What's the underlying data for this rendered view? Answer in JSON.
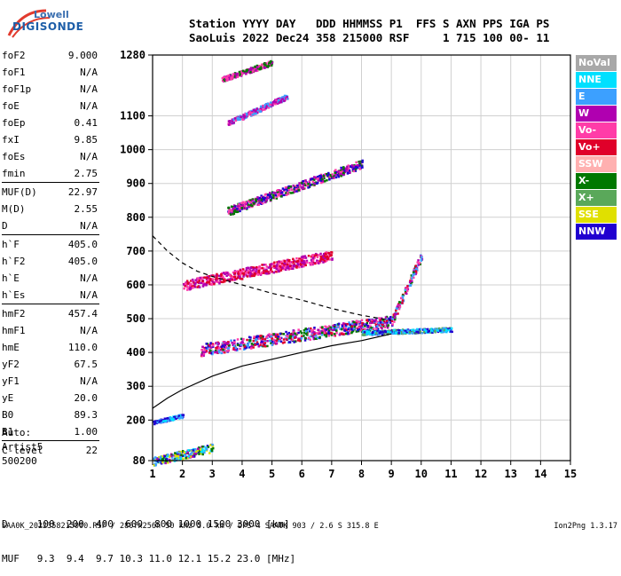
{
  "logo": {
    "line1": "Lowell",
    "line2": "DIGISONDE"
  },
  "header": {
    "line1": "Station YYYY DAY   DDD HHMMSS P1  FFS S AXN PPS IGA PS",
    "line2": "SaoLuis 2022 Dec24 358 215000 RSF     1 715 100 00- 11"
  },
  "params": [
    {
      "k": "foF2",
      "v": "9.000"
    },
    {
      "k": "foF1",
      "v": "N/A"
    },
    {
      "k": "foF1p",
      "v": "N/A"
    },
    {
      "k": "foE",
      "v": "N/A"
    },
    {
      "k": "foEp",
      "v": "0.41"
    },
    {
      "k": "fxI",
      "v": "9.85"
    },
    {
      "k": "foEs",
      "v": "N/A"
    },
    {
      "k": "fmin",
      "v": "2.75"
    },
    {
      "k": "MUF(D)",
      "v": "22.97"
    },
    {
      "k": "M(D)",
      "v": "2.55"
    },
    {
      "k": "D",
      "v": "N/A"
    },
    {
      "k": "h`F",
      "v": "405.0"
    },
    {
      "k": "h`F2",
      "v": "405.0"
    },
    {
      "k": "h`E",
      "v": "N/A"
    },
    {
      "k": "h`Es",
      "v": "N/A"
    },
    {
      "k": "hmF2",
      "v": "457.4"
    },
    {
      "k": "hmF1",
      "v": "N/A"
    },
    {
      "k": "hmE",
      "v": "110.0"
    },
    {
      "k": "yF2",
      "v": "67.5"
    },
    {
      "k": "yF1",
      "v": "N/A"
    },
    {
      "k": "yE",
      "v": "20.0"
    },
    {
      "k": "B0",
      "v": "89.3"
    },
    {
      "k": "B1",
      "v": "1.00"
    },
    {
      "k": "C-level",
      "v": "22"
    }
  ],
  "auto": {
    "l1": "Auto:",
    "l2": "Artist5",
    "l3": "500200"
  },
  "legend": [
    {
      "label": "NoVal",
      "color": "#a8a8a8"
    },
    {
      "label": "NNE",
      "color": "#00e0ff"
    },
    {
      "label": "E",
      "color": "#3ca0ff"
    },
    {
      "label": "W",
      "color": "#b000b0"
    },
    {
      "label": "Vo-",
      "color": "#ff3ca8"
    },
    {
      "label": "Vo+",
      "color": "#e0002a"
    },
    {
      "label": "SSW",
      "color": "#ffb0b0"
    },
    {
      "label": "X-",
      "color": "#007800"
    },
    {
      "label": "X+",
      "color": "#5aa85a"
    },
    {
      "label": "SSE",
      "color": "#e0e000"
    },
    {
      "label": "NNW",
      "color": "#2000d0"
    }
  ],
  "muf_table": {
    "d_line": "D     100  200  400  600  800 1000 1500 3000 [km]",
    "muf_line": "MUF   9.3  9.4  9.7 10.3 11.0 12.1 15.2 23.0 [MHz]"
  },
  "footer": {
    "left": "SAA0K_2022358215000.RSF / 280fx256h 50 kHz 5.0 km / DPS-4 SAA0K 903 / 2.6 S 315.8 E",
    "right": "Ion2Png 1.3.17"
  },
  "chart_data": {
    "type": "scatter",
    "xlim": [
      1,
      15
    ],
    "ylim": [
      80,
      1280
    ],
    "xticks": [
      1,
      2,
      3,
      4,
      5,
      6,
      7,
      8,
      9,
      10,
      11,
      12,
      13,
      14,
      15
    ],
    "yticks": [
      80,
      200,
      300,
      400,
      500,
      600,
      700,
      800,
      900,
      1000,
      1100,
      1280
    ],
    "grid": true,
    "profile_curve": [
      [
        1,
        235
      ],
      [
        1.5,
        265
      ],
      [
        2,
        290
      ],
      [
        3,
        330
      ],
      [
        4,
        360
      ],
      [
        5,
        380
      ],
      [
        6,
        400
      ],
      [
        7,
        420
      ],
      [
        8,
        435
      ],
      [
        9,
        455
      ]
    ],
    "muf_dashed_curve": [
      [
        1,
        745
      ],
      [
        1.5,
        700
      ],
      [
        2,
        665
      ],
      [
        2.5,
        640
      ],
      [
        3,
        625
      ],
      [
        4,
        600
      ],
      [
        5,
        575
      ],
      [
        6,
        555
      ],
      [
        7,
        530
      ],
      [
        8,
        510
      ],
      [
        9,
        495
      ]
    ],
    "trace_bands": [
      {
        "x0": 2.6,
        "x1": 9.0,
        "y0": 410,
        "y1": 495,
        "spread": 35,
        "colors": [
          "#e0002a",
          "#ff3ca8",
          "#b000b0",
          "#007800",
          "#2000d0",
          "#3ca0ff"
        ]
      },
      {
        "x0": 9.0,
        "x1": 10.0,
        "y0": 495,
        "y1": 690,
        "spread": 25,
        "colors": [
          "#e0002a",
          "#ff3ca8",
          "#b000b0",
          "#007800",
          "#3ca0ff"
        ]
      },
      {
        "x0": 2.0,
        "x1": 7.0,
        "y0": 600,
        "y1": 690,
        "spread": 30,
        "colors": [
          "#b000b0",
          "#ff3ca8",
          "#e0002a"
        ]
      },
      {
        "x0": 3.5,
        "x1": 8.0,
        "y0": 820,
        "y1": 960,
        "spread": 25,
        "colors": [
          "#b000b0",
          "#ff3ca8",
          "#007800",
          "#2000d0"
        ]
      },
      {
        "x0": 3.5,
        "x1": 5.5,
        "y0": 1080,
        "y1": 1160,
        "spread": 15,
        "colors": [
          "#b000b0",
          "#ff3ca8",
          "#3ca0ff"
        ]
      },
      {
        "x0": 3.3,
        "x1": 5.0,
        "y0": 1210,
        "y1": 1260,
        "spread": 15,
        "colors": [
          "#b000b0",
          "#ff3ca8",
          "#007800"
        ]
      },
      {
        "x0": 1.0,
        "x1": 3.0,
        "y0": 80,
        "y1": 120,
        "spread": 25,
        "colors": [
          "#2000d0",
          "#007800",
          "#e0e000",
          "#3ca0ff",
          "#00e0ff",
          "#b000b0"
        ]
      },
      {
        "x0": 1.0,
        "x1": 2.0,
        "y0": 195,
        "y1": 215,
        "spread": 10,
        "colors": [
          "#3ca0ff",
          "#00e0ff",
          "#2000d0"
        ]
      },
      {
        "x0": 8.0,
        "x1": 11.0,
        "y0": 460,
        "y1": 470,
        "spread": 12,
        "colors": [
          "#00e0ff",
          "#3ca0ff",
          "#5aa85a",
          "#2000d0"
        ]
      }
    ]
  }
}
